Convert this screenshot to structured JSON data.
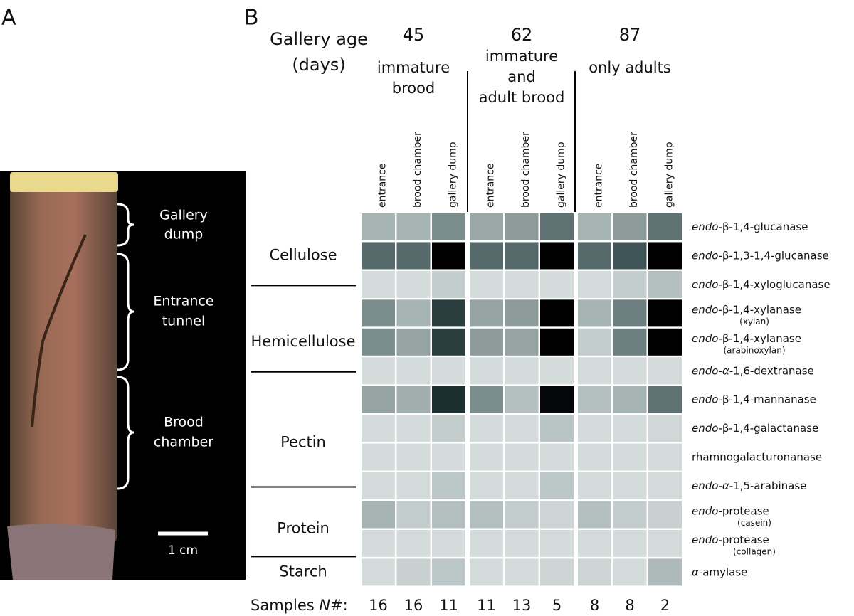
{
  "panel_a": {
    "letter": "A",
    "labels": [
      [
        "Gallery",
        "dump"
      ],
      [
        "Entrance",
        "tunnel"
      ],
      [
        "Brood",
        "chamber"
      ]
    ],
    "scale_bar": "1 cm"
  },
  "panel_b": {
    "letter": "B",
    "age_title": [
      "Gallery age",
      "(days)"
    ],
    "groups": [
      {
        "age": "45",
        "desc": [
          "immature",
          "brood"
        ]
      },
      {
        "age": "62",
        "desc": [
          "immature",
          "and",
          "adult brood"
        ]
      },
      {
        "age": "87",
        "desc": [
          "only adults"
        ]
      }
    ],
    "columns": [
      "entrance",
      "brood chamber",
      "gallery dump"
    ],
    "substrates": [
      {
        "name": "Cellulose",
        "rows": [
          0,
          2
        ]
      },
      {
        "name": "Hemicellulose",
        "rows": [
          3,
          5
        ]
      },
      {
        "name": "Pectin",
        "rows": [
          6,
          9
        ]
      },
      {
        "name": "Protein",
        "rows": [
          10,
          11
        ]
      },
      {
        "name": "Starch",
        "rows": [
          12,
          12
        ]
      }
    ],
    "enzymes": [
      {
        "italic": "endo",
        "text": "-β-1,4-glucanase"
      },
      {
        "italic": "endo",
        "text": "-β-1,3-1,4-glucanase"
      },
      {
        "italic": "endo",
        "text": "-β-1,4-xyloglucanase"
      },
      {
        "italic": "endo",
        "text": "-β-1,4-xylanase",
        "sub": "(xylan)"
      },
      {
        "italic": "endo",
        "text": "-β-1,4-xylanase",
        "sub": "(arabinoxylan)"
      },
      {
        "italic": "endo-α",
        "text": "-1,6-dextranase"
      },
      {
        "italic": "endo",
        "text": "-β-1,4-mannanase"
      },
      {
        "italic": "endo",
        "text": "-β-1,4-galactanase"
      },
      {
        "text": "rhamnogalacturonanase"
      },
      {
        "italic": "endo-α",
        "text": "-1,5-arabinase"
      },
      {
        "italic": "endo",
        "text": "-protease",
        "sub": "(casein)"
      },
      {
        "italic": "endo",
        "text": "-protease",
        "sub": "(collagen)"
      },
      {
        "italic": "α",
        "text": "-amylase"
      }
    ],
    "cell_colors": [
      [
        "#a6b4b3",
        "#a6b4b3",
        "#7b8d8d",
        "#9aa9a8",
        "#8d9c9b",
        "#5f7273",
        "#a6b4b3",
        "#8d9c9b",
        "#5f7273"
      ],
      [
        "#576a6b",
        "#576a6b",
        "#000000",
        "#576a6b",
        "#576a6b",
        "#000000",
        "#576a6b",
        "#3f5456",
        "#000000"
      ],
      [
        "#d4dcdb",
        "#d4dcdb",
        "#c2cdcc",
        "#d4dcdb",
        "#d4dcdb",
        "#d4dcdb",
        "#d4dcdb",
        "#c2cdcc",
        "#b3c0bf"
      ],
      [
        "#7b8d8d",
        "#a6b4b3",
        "#2a3d3f",
        "#95a4a3",
        "#8d9c9b",
        "#000000",
        "#a6b4b3",
        "#6d7f80",
        "#000000"
      ],
      [
        "#7b8d8d",
        "#95a4a3",
        "#2a3d3f",
        "#8d9c9b",
        "#95a4a3",
        "#000000",
        "#c2cdcc",
        "#6d7f80",
        "#000000"
      ],
      [
        "#d4dcdb",
        "#d4dcdb",
        "#d4dcdb",
        "#d4dcdb",
        "#d4dcdb",
        "#d4dcdb",
        "#d4dcdb",
        "#d4dcdb",
        "#d4dcdb"
      ],
      [
        "#95a4a3",
        "#a0aeae",
        "#1c2e30",
        "#7b8d8d",
        "#b3c0bf",
        "#05060a",
        "#b3c0bf",
        "#a6b4b3",
        "#5f7273"
      ],
      [
        "#d4dcdb",
        "#d4dcdb",
        "#c2cdcc",
        "#d4dcdb",
        "#d4dcdb",
        "#b8c5c4",
        "#d4dcdb",
        "#d4dcdb",
        "#d0d8d7"
      ],
      [
        "#d4dcdb",
        "#d4dcdb",
        "#d4dcdb",
        "#d4dcdb",
        "#d4dcdb",
        "#d4dcdb",
        "#d4dcdb",
        "#d4dcdb",
        "#d4dcdb"
      ],
      [
        "#d4dcdb",
        "#d4dcdb",
        "#bcc8c7",
        "#d4dcdb",
        "#d4dcdb",
        "#bcc8c7",
        "#d4dcdb",
        "#d4dcdb",
        "#d4dcdb"
      ],
      [
        "#a6b4b3",
        "#c2cdcc",
        "#b3c0bf",
        "#b3c0bf",
        "#c2cdcc",
        "#ccd5d4",
        "#b3c0bf",
        "#c2cdcc",
        "#c8d1d0"
      ],
      [
        "#d4dcdb",
        "#d4dcdb",
        "#d4dcdb",
        "#d4dcdb",
        "#d4dcdb",
        "#d4dcdb",
        "#d4dcdb",
        "#d4dcdb",
        "#d4dcdb"
      ],
      [
        "#d4dcdb",
        "#c8d1d0",
        "#bcc8c7",
        "#d4dcdb",
        "#d4dcdb",
        "#ccd5d4",
        "#ccd5d4",
        "#d4dcdb",
        "#adbab9"
      ]
    ],
    "samples_label": {
      "pre": "Samples ",
      "italic": "N",
      "post": "#:"
    },
    "samples": [
      16,
      16,
      11,
      11,
      13,
      5,
      8,
      8,
      2
    ]
  }
}
